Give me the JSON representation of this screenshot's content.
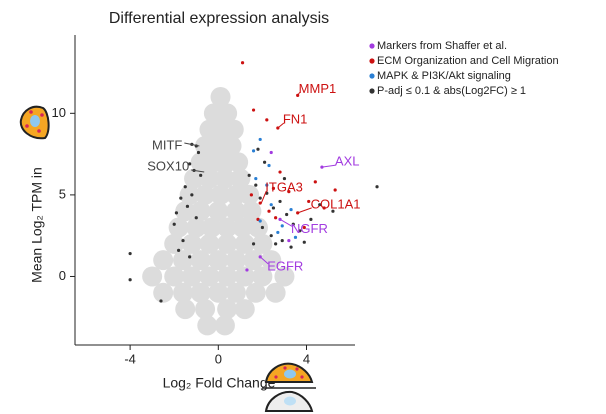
{
  "chart_data": {
    "type": "scatter",
    "title": "Differential expression analysis",
    "x_label": "Log₂ Fold Change",
    "y_label": "Mean Log₂ TPM in",
    "xlim": [
      -6.5,
      6.2
    ],
    "ylim": [
      -4.2,
      14.8
    ],
    "xticks": [
      -4,
      0,
      4
    ],
    "yticks": [
      0,
      5,
      10
    ],
    "legend": "top-right",
    "background": {
      "color": "#dcdcdc",
      "x": [
        -0.5,
        0.3,
        -1.5,
        -0.6,
        0.4,
        1.2,
        -2.5,
        -1.6,
        -0.8,
        0,
        0.8,
        1.7,
        2.6,
        -3,
        -2,
        -1.2,
        -0.4,
        0.4,
        1.2,
        2,
        3,
        -2.5,
        -1.6,
        -0.8,
        0,
        0.8,
        1.6,
        2.4,
        -2,
        -1.2,
        -0.4,
        0.4,
        1.2,
        2,
        -1.8,
        -1,
        -0.3,
        0.4,
        1.1,
        1.8,
        -1.5,
        -0.8,
        0,
        0.8,
        1.5,
        -1.3,
        -0.6,
        0.1,
        0.8,
        1.4,
        -1.1,
        -0.4,
        0.3,
        1,
        -0.8,
        -0.2,
        0.4,
        0.9,
        -0.6,
        0,
        0.6,
        -0.4,
        0.2,
        0.7,
        -0.2,
        0.4,
        0.1
      ],
      "y": [
        -3,
        -3,
        -2,
        -2,
        -2,
        -2,
        -1,
        -1,
        -1,
        -1,
        -1,
        -1,
        -1,
        0,
        0,
        0,
        0,
        0,
        0,
        0,
        0,
        1,
        1,
        1,
        1,
        1,
        1,
        1,
        2,
        2,
        2,
        2,
        2,
        2,
        3,
        3,
        3,
        3,
        3,
        3,
        4,
        4,
        4,
        4,
        4,
        5,
        5,
        5,
        5,
        5,
        6,
        6,
        6,
        6,
        7,
        7,
        7,
        7,
        8,
        8,
        8,
        9,
        9,
        9,
        10,
        10,
        11
      ]
    },
    "series": [
      {
        "name": "Markers from Shaffer et al.",
        "color": "#a23be0",
        "x": [
          4.7,
          2.8,
          1.9,
          2.4,
          1.3,
          3.2
        ],
        "y": [
          6.7,
          3.5,
          1.2,
          7.6,
          0.4,
          2.2
        ]
      },
      {
        "name": "ECM Organization and Cell Migration",
        "color": "#cc1111",
        "x": [
          1.1,
          3.6,
          2.7,
          2.2,
          1.9,
          2.5,
          3.2,
          3.6,
          4.1,
          4.4,
          5.3,
          2.8,
          1.8,
          2.3,
          3.9,
          1.6,
          4.8,
          2.6,
          1.5
        ],
        "y": [
          13.1,
          11.1,
          9.1,
          9.6,
          4.5,
          5.4,
          5.2,
          3.9,
          4.6,
          5.8,
          5.3,
          6.4,
          3.5,
          4.0,
          3.0,
          10.2,
          4.2,
          3.6,
          5.0
        ]
      },
      {
        "name": "MAPK & PI3K/Akt signaling",
        "color": "#2a7fd4",
        "x": [
          1.6,
          1.9,
          2.3,
          1.7,
          2.4,
          2.9,
          3.3,
          1.9,
          2.7,
          3.5,
          2.2
        ],
        "y": [
          7.7,
          8.4,
          6.8,
          6.0,
          4.4,
          3.1,
          4.1,
          3.4,
          2.7,
          2.4,
          5.6
        ]
      },
      {
        "name": "P-adj ≤ 0.1 & abs(Log2FC) ≥ 1",
        "color": "#333333",
        "x": [
          -1.2,
          -1.0,
          -0.9,
          -1.3,
          -1.1,
          -0.8,
          -1.5,
          -1.2,
          -1.7,
          -1.4,
          -1.9,
          -1.0,
          -1.6,
          -1.8,
          -1.3,
          -2.0,
          -4.0,
          -4.0,
          -2.6,
          1.4,
          1.7,
          1.9,
          2.2,
          2.5,
          2.8,
          3.1,
          3.4,
          3.7,
          2.0,
          2.4,
          2.9,
          3.3,
          1.6,
          4.2,
          4.6,
          5.2,
          7.2,
          2.1,
          3.0,
          1.8,
          2.6,
          3.9
        ],
        "y": [
          8.1,
          8.0,
          7.6,
          6.9,
          6.5,
          6.2,
          5.5,
          5.0,
          4.8,
          4.3,
          3.9,
          3.6,
          2.2,
          1.6,
          1.2,
          3.2,
          1.4,
          -0.2,
          -1.5,
          6.2,
          5.6,
          4.8,
          5.1,
          4.2,
          4.6,
          3.8,
          3.2,
          2.8,
          3.0,
          2.5,
          2.2,
          1.8,
          2.0,
          3.5,
          4.4,
          4.0,
          5.5,
          7.0,
          6.0,
          7.8,
          2.0,
          2.1
        ]
      }
    ],
    "annotations": [
      {
        "text": "MITF",
        "x": -0.86,
        "y": 8.0,
        "color": "#444444"
      },
      {
        "text": "SOX10",
        "x": -0.64,
        "y": 6.4,
        "color": "#444444"
      },
      {
        "text": "FN1",
        "x": 2.7,
        "y": 9.1,
        "color": "#cc1111"
      },
      {
        "text": "MMP1",
        "x": 3.6,
        "y": 11.1,
        "color": "#cc1111"
      },
      {
        "text": "AXL",
        "x": 4.7,
        "y": 6.7,
        "color": "#a23be0"
      },
      {
        "text": "ITGA3",
        "x": 1.95,
        "y": 4.5,
        "color": "#cc1111"
      },
      {
        "text": "COL1A1",
        "x": 3.6,
        "y": 3.9,
        "color": "#cc1111"
      },
      {
        "text": "NGFR",
        "x": 2.8,
        "y": 3.5,
        "color": "#a23be0"
      },
      {
        "text": "EGFR",
        "x": 1.9,
        "y": 1.2,
        "color": "#a23be0"
      }
    ]
  }
}
